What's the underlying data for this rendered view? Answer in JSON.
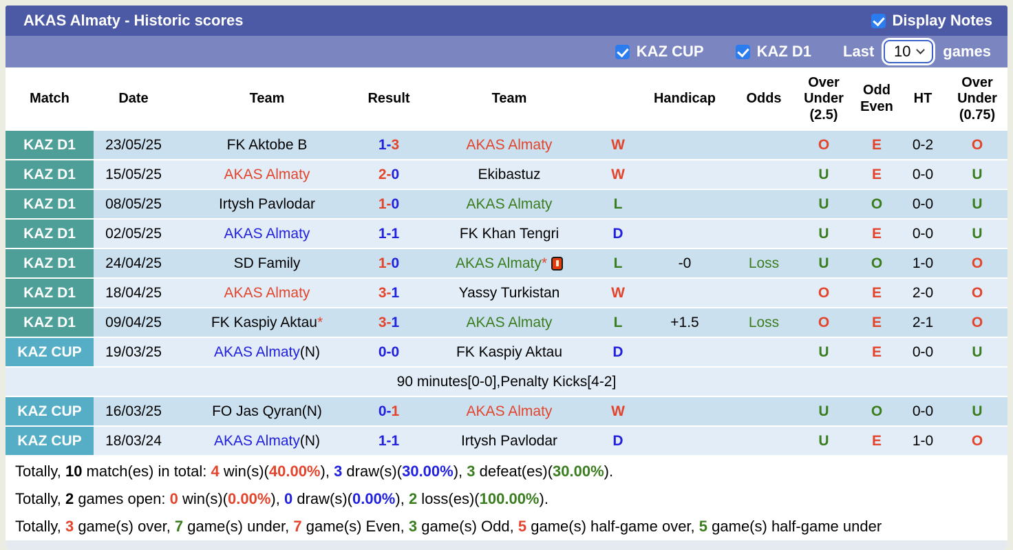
{
  "header": {
    "title": "AKAS Almaty - Historic scores",
    "display_notes_label": "Display Notes",
    "display_notes_checked": true
  },
  "filters": {
    "kaz_cup_label": "KAZ CUP",
    "kaz_cup_checked": true,
    "kaz_d1_label": "KAZ D1",
    "kaz_d1_checked": true,
    "last_label": "Last",
    "last_value": "10",
    "games_label": "games"
  },
  "colors": {
    "title_bar": "#4c59a5",
    "filter_bar": "#7b86c1",
    "badge_d1": "#4f9f99",
    "badge_cup": "#55aec5",
    "row_dark": "#cbe0ef",
    "row_light": "#e3edf7",
    "red": "#e2442c",
    "green": "#3a7d1e",
    "blue": "#2121dd",
    "checkbox_blue": "#2b7cef",
    "select_border": "#3a63c9"
  },
  "table": {
    "columns": [
      "Match",
      "Date",
      "Team",
      "Result",
      "Team",
      "",
      "Handicap",
      "Odds",
      "Over\nUnder\n(2.5)",
      "Odd\nEven",
      "HT",
      "Over\nUnder\n(0.75)"
    ],
    "rows": [
      {
        "type": "match",
        "league": "KAZ D1",
        "league_key": "d1",
        "date": "23/05/25",
        "home": [
          {
            "t": "FK Aktobe B",
            "c": "black"
          }
        ],
        "result": [
          {
            "t": "1",
            "c": "blue"
          },
          {
            "t": "-",
            "c": "blue"
          },
          {
            "t": "3",
            "c": "red"
          }
        ],
        "away": [
          {
            "t": "AKAS Almaty",
            "c": "red"
          }
        ],
        "wld": {
          "t": "W",
          "c": "red"
        },
        "handicap": "",
        "odds": null,
        "ou25": {
          "t": "O",
          "c": "red"
        },
        "oe": {
          "t": "E",
          "c": "red"
        },
        "ht": "0-2",
        "ou075": {
          "t": "O",
          "c": "red"
        }
      },
      {
        "type": "match",
        "league": "KAZ D1",
        "league_key": "d1",
        "date": "15/05/25",
        "home": [
          {
            "t": "AKAS Almaty",
            "c": "red"
          }
        ],
        "result": [
          {
            "t": "2",
            "c": "red"
          },
          {
            "t": "-",
            "c": "red"
          },
          {
            "t": "0",
            "c": "blue"
          }
        ],
        "away": [
          {
            "t": "Ekibastuz",
            "c": "black"
          }
        ],
        "wld": {
          "t": "W",
          "c": "red"
        },
        "handicap": "",
        "odds": null,
        "ou25": {
          "t": "U",
          "c": "green"
        },
        "oe": {
          "t": "E",
          "c": "red"
        },
        "ht": "0-0",
        "ou075": {
          "t": "U",
          "c": "green"
        }
      },
      {
        "type": "match",
        "league": "KAZ D1",
        "league_key": "d1",
        "date": "08/05/25",
        "home": [
          {
            "t": "Irtysh Pavlodar",
            "c": "black"
          }
        ],
        "result": [
          {
            "t": "1",
            "c": "red"
          },
          {
            "t": "-",
            "c": "red"
          },
          {
            "t": "0",
            "c": "blue"
          }
        ],
        "away": [
          {
            "t": "AKAS Almaty",
            "c": "green"
          }
        ],
        "wld": {
          "t": "L",
          "c": "green"
        },
        "handicap": "",
        "odds": null,
        "ou25": {
          "t": "U",
          "c": "green"
        },
        "oe": {
          "t": "O",
          "c": "green"
        },
        "ht": "0-0",
        "ou075": {
          "t": "U",
          "c": "green"
        }
      },
      {
        "type": "match",
        "league": "KAZ D1",
        "league_key": "d1",
        "date": "02/05/25",
        "home": [
          {
            "t": "AKAS Almaty",
            "c": "blue"
          }
        ],
        "result": [
          {
            "t": "1",
            "c": "blue"
          },
          {
            "t": "-",
            "c": "blue"
          },
          {
            "t": "1",
            "c": "blue"
          }
        ],
        "away": [
          {
            "t": "FK Khan Tengri",
            "c": "black"
          }
        ],
        "wld": {
          "t": "D",
          "c": "blue"
        },
        "handicap": "",
        "odds": null,
        "ou25": {
          "t": "U",
          "c": "green"
        },
        "oe": {
          "t": "E",
          "c": "red"
        },
        "ht": "0-0",
        "ou075": {
          "t": "U",
          "c": "green"
        }
      },
      {
        "type": "match",
        "league": "KAZ D1",
        "league_key": "d1",
        "date": "24/04/25",
        "home": [
          {
            "t": "SD Family",
            "c": "black"
          }
        ],
        "result": [
          {
            "t": "1",
            "c": "red"
          },
          {
            "t": "-",
            "c": "red"
          },
          {
            "t": "0",
            "c": "blue"
          }
        ],
        "away": [
          {
            "t": "AKAS Almaty",
            "c": "green"
          },
          {
            "t": "*",
            "c": "red"
          },
          {
            "icon": "red-card"
          }
        ],
        "wld": {
          "t": "L",
          "c": "green"
        },
        "handicap": "-0",
        "odds": {
          "t": "Loss",
          "c": "green"
        },
        "ou25": {
          "t": "U",
          "c": "green"
        },
        "oe": {
          "t": "O",
          "c": "green"
        },
        "ht": "1-0",
        "ou075": {
          "t": "O",
          "c": "red"
        }
      },
      {
        "type": "match",
        "league": "KAZ D1",
        "league_key": "d1",
        "date": "18/04/25",
        "home": [
          {
            "t": "AKAS Almaty",
            "c": "red"
          }
        ],
        "result": [
          {
            "t": "3",
            "c": "red"
          },
          {
            "t": "-",
            "c": "red"
          },
          {
            "t": "1",
            "c": "blue"
          }
        ],
        "away": [
          {
            "t": "Yassy Turkistan",
            "c": "black"
          }
        ],
        "wld": {
          "t": "W",
          "c": "red"
        },
        "handicap": "",
        "odds": null,
        "ou25": {
          "t": "O",
          "c": "red"
        },
        "oe": {
          "t": "E",
          "c": "red"
        },
        "ht": "2-0",
        "ou075": {
          "t": "O",
          "c": "red"
        }
      },
      {
        "type": "match",
        "league": "KAZ D1",
        "league_key": "d1",
        "date": "09/04/25",
        "home": [
          {
            "t": "FK Kaspiy Aktau",
            "c": "black"
          },
          {
            "t": "*",
            "c": "red"
          }
        ],
        "result": [
          {
            "t": "3",
            "c": "red"
          },
          {
            "t": "-",
            "c": "red"
          },
          {
            "t": "1",
            "c": "blue"
          }
        ],
        "away": [
          {
            "t": "AKAS Almaty",
            "c": "green"
          }
        ],
        "wld": {
          "t": "L",
          "c": "green"
        },
        "handicap": "+1.5",
        "odds": {
          "t": "Loss",
          "c": "green"
        },
        "ou25": {
          "t": "O",
          "c": "red"
        },
        "oe": {
          "t": "E",
          "c": "red"
        },
        "ht": "2-1",
        "ou075": {
          "t": "O",
          "c": "red"
        }
      },
      {
        "type": "match",
        "league": "KAZ CUP",
        "league_key": "cup",
        "date": "19/03/25",
        "home": [
          {
            "t": "AKAS Almaty",
            "c": "blue"
          },
          {
            "t": "(N)",
            "c": "black"
          }
        ],
        "result": [
          {
            "t": "0",
            "c": "blue"
          },
          {
            "t": "-",
            "c": "blue"
          },
          {
            "t": "0",
            "c": "blue"
          }
        ],
        "away": [
          {
            "t": "FK Kaspiy Aktau",
            "c": "black"
          }
        ],
        "wld": {
          "t": "D",
          "c": "blue"
        },
        "handicap": "",
        "odds": null,
        "ou25": {
          "t": "U",
          "c": "green"
        },
        "oe": {
          "t": "E",
          "c": "red"
        },
        "ht": "0-0",
        "ou075": {
          "t": "U",
          "c": "green"
        }
      },
      {
        "type": "note",
        "text": "90 minutes[0-0],Penalty Kicks[4-2]"
      },
      {
        "type": "match",
        "league": "KAZ CUP",
        "league_key": "cup",
        "date": "16/03/25",
        "home": [
          {
            "t": "FO Jas Qyran(N)",
            "c": "black"
          }
        ],
        "result": [
          {
            "t": "0",
            "c": "blue"
          },
          {
            "t": "-",
            "c": "blue"
          },
          {
            "t": "1",
            "c": "red"
          }
        ],
        "away": [
          {
            "t": "AKAS Almaty",
            "c": "red"
          }
        ],
        "wld": {
          "t": "W",
          "c": "red"
        },
        "handicap": "",
        "odds": null,
        "ou25": {
          "t": "U",
          "c": "green"
        },
        "oe": {
          "t": "O",
          "c": "green"
        },
        "ht": "0-0",
        "ou075": {
          "t": "U",
          "c": "green"
        }
      },
      {
        "type": "match",
        "league": "KAZ CUP",
        "league_key": "cup",
        "date": "18/03/24",
        "home": [
          {
            "t": "AKAS Almaty",
            "c": "blue"
          },
          {
            "t": "(N)",
            "c": "black"
          }
        ],
        "result": [
          {
            "t": "1",
            "c": "blue"
          },
          {
            "t": "-",
            "c": "blue"
          },
          {
            "t": "1",
            "c": "blue"
          }
        ],
        "away": [
          {
            "t": "Irtysh Pavlodar",
            "c": "black"
          }
        ],
        "wld": {
          "t": "D",
          "c": "blue"
        },
        "handicap": "",
        "odds": null,
        "ou25": {
          "t": "U",
          "c": "green"
        },
        "oe": {
          "t": "E",
          "c": "red"
        },
        "ht": "1-0",
        "ou075": {
          "t": "O",
          "c": "red"
        }
      }
    ]
  },
  "summary": [
    [
      {
        "t": "Totally, "
      },
      {
        "t": "10",
        "b": 1
      },
      {
        "t": " match(es) in total: "
      },
      {
        "t": "4",
        "c": "red",
        "b": 1
      },
      {
        "t": " win(s)("
      },
      {
        "t": "40.00%",
        "c": "red",
        "b": 1
      },
      {
        "t": "), "
      },
      {
        "t": "3",
        "c": "blue",
        "b": 1
      },
      {
        "t": " draw(s)("
      },
      {
        "t": "30.00%",
        "c": "blue",
        "b": 1
      },
      {
        "t": "), "
      },
      {
        "t": "3",
        "c": "green",
        "b": 1
      },
      {
        "t": " defeat(es)("
      },
      {
        "t": "30.00%",
        "c": "green",
        "b": 1
      },
      {
        "t": ")."
      }
    ],
    [
      {
        "t": "Totally, "
      },
      {
        "t": "2",
        "b": 1
      },
      {
        "t": " games open: "
      },
      {
        "t": "0",
        "c": "red",
        "b": 1
      },
      {
        "t": " win(s)("
      },
      {
        "t": "0.00%",
        "c": "red",
        "b": 1
      },
      {
        "t": "), "
      },
      {
        "t": "0",
        "c": "blue",
        "b": 1
      },
      {
        "t": " draw(s)("
      },
      {
        "t": "0.00%",
        "c": "blue",
        "b": 1
      },
      {
        "t": "), "
      },
      {
        "t": "2",
        "c": "green",
        "b": 1
      },
      {
        "t": " loss(es)("
      },
      {
        "t": "100.00%",
        "c": "green",
        "b": 1
      },
      {
        "t": ")."
      }
    ],
    [
      {
        "t": "Totally, "
      },
      {
        "t": "3",
        "c": "red",
        "b": 1
      },
      {
        "t": " game(s) over, "
      },
      {
        "t": "7",
        "c": "green",
        "b": 1
      },
      {
        "t": " game(s) under, "
      },
      {
        "t": "7",
        "c": "red",
        "b": 1
      },
      {
        "t": " game(s) Even, "
      },
      {
        "t": "3",
        "c": "green",
        "b": 1
      },
      {
        "t": " game(s) Odd, "
      },
      {
        "t": "5",
        "c": "red",
        "b": 1
      },
      {
        "t": " game(s) half-game over, "
      },
      {
        "t": "5",
        "c": "green",
        "b": 1
      },
      {
        "t": " game(s) half-game under"
      }
    ]
  ]
}
